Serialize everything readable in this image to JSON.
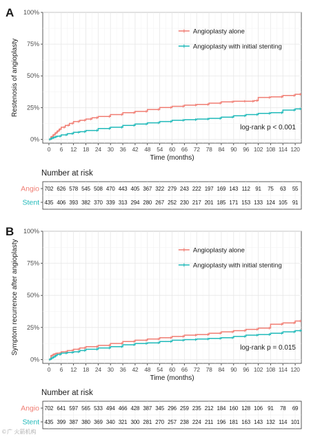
{
  "chart_data": [
    {
      "type": "line",
      "panel_label": "A",
      "ylabel": "Restenosis of angioplasty",
      "xlabel": "Time (months)",
      "xlim": [
        -3,
        123
      ],
      "ylim": [
        -0.03,
        1.0
      ],
      "x_ticks": [
        0,
        6,
        12,
        18,
        24,
        30,
        36,
        42,
        48,
        54,
        60,
        66,
        72,
        78,
        84,
        90,
        96,
        102,
        108,
        114,
        120
      ],
      "y_ticks": [
        0,
        0.25,
        0.5,
        0.75,
        1.0
      ],
      "y_tick_labels": [
        "0%",
        "25%",
        "50%",
        "75%",
        "100%"
      ],
      "grid": true,
      "legend_position": "top-right",
      "annotation": "log-rank p < 0.001",
      "series": [
        {
          "name": "Angioplasty alone",
          "color": "#f07c72",
          "x": [
            0,
            1,
            2,
            3,
            4,
            5,
            6,
            8,
            10,
            12,
            15,
            18,
            21,
            24,
            30,
            36,
            42,
            48,
            54,
            60,
            66,
            72,
            78,
            84,
            90,
            96,
            100,
            102,
            108,
            114,
            120,
            123
          ],
          "y": [
            0,
            0.02,
            0.035,
            0.05,
            0.065,
            0.08,
            0.095,
            0.11,
            0.125,
            0.14,
            0.15,
            0.16,
            0.17,
            0.18,
            0.195,
            0.21,
            0.22,
            0.235,
            0.25,
            0.26,
            0.27,
            0.275,
            0.285,
            0.295,
            0.3,
            0.3,
            0.305,
            0.33,
            0.335,
            0.345,
            0.355,
            0.355
          ]
        },
        {
          "name": "Angioplasty with initial stenting",
          "color": "#1fb9b9",
          "x": [
            0,
            1,
            2,
            3,
            4,
            6,
            9,
            12,
            15,
            18,
            24,
            30,
            36,
            42,
            48,
            54,
            60,
            66,
            72,
            78,
            84,
            90,
            96,
            102,
            108,
            114,
            120,
            123
          ],
          "y": [
            0,
            0.008,
            0.015,
            0.02,
            0.025,
            0.035,
            0.045,
            0.055,
            0.06,
            0.07,
            0.085,
            0.095,
            0.11,
            0.12,
            0.13,
            0.14,
            0.15,
            0.155,
            0.16,
            0.165,
            0.175,
            0.185,
            0.195,
            0.205,
            0.21,
            0.23,
            0.24,
            0.24
          ]
        }
      ],
      "risk_table": {
        "title": "Number at risk",
        "rows": [
          {
            "label": "Angio",
            "color": "#f07c72",
            "values": [
              "702",
              "626",
              "578",
              "545",
              "508",
              "470",
              "443",
              "405",
              "367",
              "322",
              "279",
              "243",
              "222",
              "197",
              "169",
              "143",
              "112",
              "91",
              "75",
              "63",
              "55"
            ]
          },
          {
            "label": "Stent",
            "color": "#1fb9b9",
            "values": [
              "435",
              "406",
              "393",
              "382",
              "370",
              "339",
              "313",
              "294",
              "280",
              "267",
              "252",
              "230",
              "217",
              "201",
              "185",
              "171",
              "153",
              "133",
              "124",
              "105",
              "91"
            ]
          }
        ]
      }
    },
    {
      "type": "line",
      "panel_label": "B",
      "ylabel": "Symptom recurrence after angioplasty",
      "xlabel": "Time (months)",
      "xlim": [
        -3,
        123
      ],
      "ylim": [
        -0.03,
        1.0
      ],
      "x_ticks": [
        0,
        6,
        12,
        18,
        24,
        30,
        36,
        42,
        48,
        54,
        60,
        66,
        72,
        78,
        84,
        90,
        96,
        102,
        108,
        114,
        120
      ],
      "y_ticks": [
        0,
        0.25,
        0.5,
        0.75,
        1.0
      ],
      "y_tick_labels": [
        "0%",
        "25%",
        "50%",
        "75%",
        "100%"
      ],
      "grid": true,
      "legend_position": "top-right",
      "annotation": "log-rank p = 0.015",
      "series": [
        {
          "name": "Angioplasty alone",
          "color": "#f07c72",
          "x": [
            0,
            1,
            2,
            3,
            4,
            6,
            9,
            12,
            15,
            18,
            24,
            30,
            36,
            42,
            48,
            54,
            60,
            66,
            72,
            78,
            84,
            90,
            96,
            102,
            108,
            114,
            120,
            123
          ],
          "y": [
            0,
            0.03,
            0.04,
            0.045,
            0.05,
            0.06,
            0.07,
            0.08,
            0.09,
            0.1,
            0.11,
            0.125,
            0.14,
            0.15,
            0.16,
            0.17,
            0.18,
            0.19,
            0.195,
            0.205,
            0.215,
            0.225,
            0.235,
            0.245,
            0.275,
            0.285,
            0.3,
            0.3
          ]
        },
        {
          "name": "Angioplasty with initial stenting",
          "color": "#1fb9b9",
          "x": [
            0,
            1,
            2,
            3,
            4,
            6,
            9,
            12,
            15,
            18,
            24,
            30,
            36,
            42,
            48,
            54,
            60,
            66,
            72,
            78,
            84,
            90,
            96,
            102,
            108,
            114,
            120,
            123
          ],
          "y": [
            0,
            0.01,
            0.02,
            0.03,
            0.04,
            0.05,
            0.055,
            0.06,
            0.07,
            0.08,
            0.09,
            0.1,
            0.115,
            0.125,
            0.13,
            0.14,
            0.15,
            0.155,
            0.16,
            0.165,
            0.17,
            0.18,
            0.19,
            0.195,
            0.205,
            0.215,
            0.225,
            0.23
          ]
        }
      ],
      "risk_table": {
        "title": "Number at risk",
        "rows": [
          {
            "label": "Angio",
            "color": "#f07c72",
            "values": [
              "702",
              "641",
              "597",
              "565",
              "533",
              "494",
              "466",
              "428",
              "387",
              "345",
              "296",
              "259",
              "235",
              "212",
              "184",
              "160",
              "128",
              "106",
              "91",
              "78",
              "69"
            ]
          },
          {
            "label": "Stent",
            "color": "#1fb9b9",
            "values": [
              "435",
              "399",
              "387",
              "380",
              "369",
              "340",
              "321",
              "300",
              "281",
              "270",
              "257",
              "238",
              "224",
              "211",
              "196",
              "181",
              "163",
              "143",
              "132",
              "114",
              "101"
            ]
          }
        ]
      }
    }
  ],
  "watermark": "©广 火箭机构"
}
